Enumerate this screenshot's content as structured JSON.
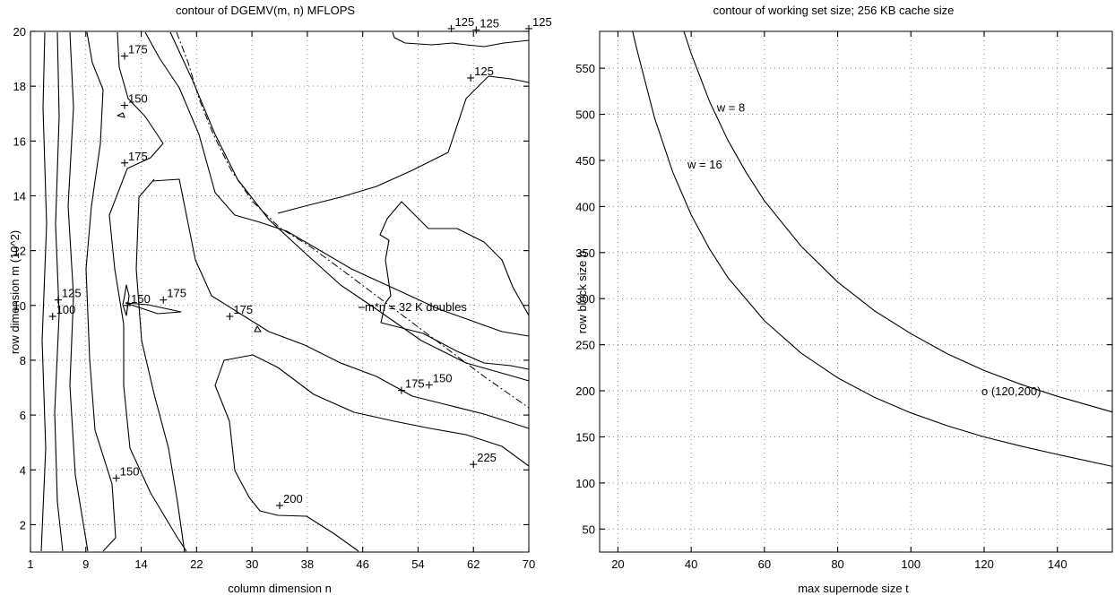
{
  "chart_data": [
    {
      "type": "contour",
      "title": "contour of DGEMV(m, n)  MFLOPS",
      "xlabel": "column dimension n",
      "ylabel": "row dimension m  (10^2)",
      "x_ticks": [
        "1",
        "9",
        "14",
        "22",
        "30",
        "38",
        "46",
        "54",
        "62",
        "70"
      ],
      "y_ticks": [
        2,
        4,
        6,
        8,
        10,
        12,
        14,
        16,
        18,
        20
      ],
      "ylim": [
        1,
        20
      ],
      "grid": true,
      "reference_curve": {
        "label": "m*n = 32 K doubles",
        "style": "dash-dot"
      },
      "contour_labels": [
        {
          "text": "125",
          "x_index": 7.6,
          "y": 20.1
        },
        {
          "text": "125",
          "x_index": 8.05,
          "y": 20.05
        },
        {
          "text": "125",
          "x_index": 9.0,
          "y": 20.1
        },
        {
          "text": "175",
          "x_index": 1.7,
          "y": 19.1
        },
        {
          "text": "125",
          "x_index": 7.95,
          "y": 18.3
        },
        {
          "text": "150",
          "x_index": 1.7,
          "y": 17.3
        },
        {
          "text": "175",
          "x_index": 1.7,
          "y": 15.2
        },
        {
          "text": "125",
          "x_index": 0.5,
          "y": 10.2
        },
        {
          "text": "100",
          "x_index": 0.4,
          "y": 9.6
        },
        {
          "text": "150",
          "x_index": 1.75,
          "y": 10.0
        },
        {
          "text": "175",
          "x_index": 2.4,
          "y": 10.2
        },
        {
          "text": "175",
          "x_index": 3.6,
          "y": 9.6
        },
        {
          "text": "175",
          "x_index": 6.7,
          "y": 6.9
        },
        {
          "text": "150",
          "x_index": 7.2,
          "y": 7.1
        },
        {
          "text": "225",
          "x_index": 8.0,
          "y": 4.2
        },
        {
          "text": "150",
          "x_index": 1.55,
          "y": 3.7
        },
        {
          "text": "200",
          "x_index": 4.5,
          "y": 2.7
        }
      ]
    },
    {
      "type": "line",
      "title": "contour of working set size; 256 KB cache size",
      "xlabel": "max supernode size t",
      "ylabel": "row block size b",
      "x_ticks": [
        20,
        40,
        60,
        80,
        100,
        120,
        140
      ],
      "y_ticks": [
        50,
        100,
        150,
        200,
        250,
        300,
        350,
        400,
        450,
        500,
        550
      ],
      "xlim": [
        15,
        155
      ],
      "ylim": [
        25,
        590
      ],
      "grid": true,
      "series": [
        {
          "name": "w = 8",
          "points": [
            [
              38,
              590
            ],
            [
              40,
              566
            ],
            [
              45,
              514
            ],
            [
              50,
              472
            ],
            [
              55,
              437
            ],
            [
              60,
              406
            ],
            [
              70,
              357
            ],
            [
              80,
              318
            ],
            [
              90,
              287
            ],
            [
              100,
              262
            ],
            [
              110,
              240
            ],
            [
              120,
              222
            ],
            [
              130,
              207
            ],
            [
              140,
              194
            ],
            [
              155,
              177
            ]
          ]
        },
        {
          "name": "w = 16",
          "points": [
            [
              24,
              590
            ],
            [
              25,
              573
            ],
            [
              30,
              496
            ],
            [
              35,
              437
            ],
            [
              40,
              391
            ],
            [
              45,
              354
            ],
            [
              50,
              323
            ],
            [
              60,
              276
            ],
            [
              70,
              241
            ],
            [
              80,
              214
            ],
            [
              90,
              193
            ],
            [
              100,
              176
            ],
            [
              110,
              162
            ],
            [
              120,
              150
            ],
            [
              130,
              140
            ],
            [
              140,
              131
            ],
            [
              155,
              118
            ]
          ]
        }
      ],
      "annotation": {
        "text": "o (120,200)",
        "x": 120,
        "y": 200
      }
    }
  ]
}
